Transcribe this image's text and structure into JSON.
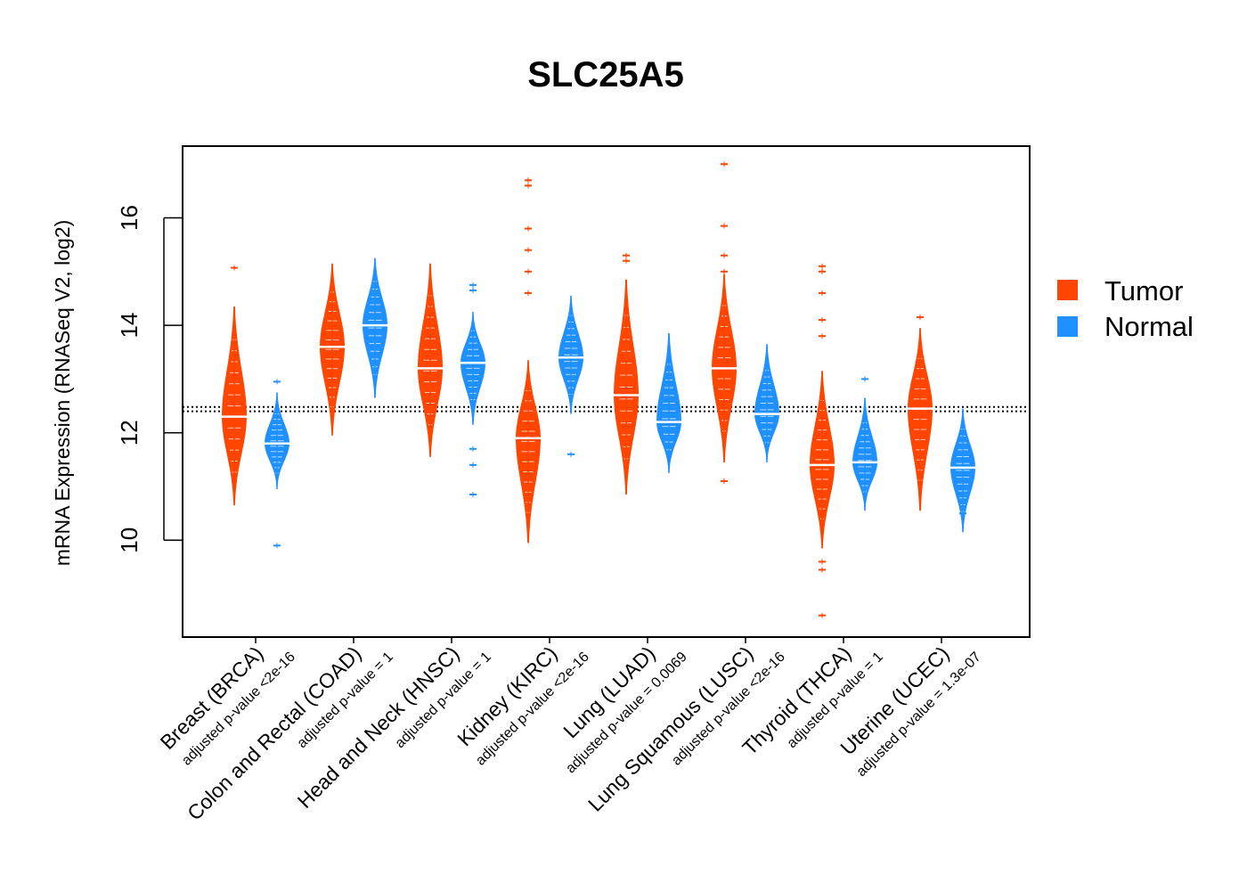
{
  "chart_data": {
    "type": "bean",
    "title": "SLC25A5",
    "xlabel": "",
    "ylabel": "mRNA Expression (RNASeq V2, log2)",
    "ylim": [
      8.3,
      17.4
    ],
    "yticks": [
      10,
      12,
      14,
      16
    ],
    "categories": [
      {
        "name": "Breast (BRCA)",
        "pvalue": "adjusted p-value <2e-16"
      },
      {
        "name": "Colon and Rectal (COAD)",
        "pvalue": "adjusted p-value = 1"
      },
      {
        "name": "Head and Neck (HNSC)",
        "pvalue": "adjusted p-value = 1"
      },
      {
        "name": "Kidney (KIRC)",
        "pvalue": "adjusted p-value <2e-16"
      },
      {
        "name": "Lung (LUAD)",
        "pvalue": "adjusted p-value = 0.0069"
      },
      {
        "name": "Lung Squamous (LUSC)",
        "pvalue": "adjusted p-value <2e-16"
      },
      {
        "name": "Thyroid (THCA)",
        "pvalue": "adjusted p-value = 1"
      },
      {
        "name": "Uterine (UCEC)",
        "pvalue": "adjusted p-value = 1.3e-07"
      }
    ],
    "reference_lines": [
      12.4,
      12.48
    ],
    "legend": {
      "position": "right",
      "entries": [
        {
          "label": "Tumor",
          "color": "#FF4500"
        },
        {
          "label": "Normal",
          "color": "#1E90FF"
        }
      ]
    },
    "series": [
      {
        "name": "Tumor",
        "color": "#FF4500",
        "groups": [
          {
            "median": 12.3,
            "min": 10.8,
            "max": 14.2,
            "outliers": [
              15.07
            ]
          },
          {
            "median": 13.6,
            "min": 12.1,
            "max": 15.0,
            "outliers": []
          },
          {
            "median": 13.2,
            "min": 11.7,
            "max": 15.0,
            "outliers": []
          },
          {
            "median": 11.9,
            "min": 10.1,
            "max": 13.2,
            "outliers": [
              14.6,
              15.0,
              15.4,
              15.8,
              16.6,
              16.7
            ]
          },
          {
            "median": 12.7,
            "min": 11.0,
            "max": 14.7,
            "outliers": [
              15.2,
              15.3
            ]
          },
          {
            "median": 13.2,
            "min": 11.6,
            "max": 14.8,
            "outliers": [
              11.1,
              15.0,
              15.3,
              15.85,
              17.0
            ]
          },
          {
            "median": 11.4,
            "min": 10.0,
            "max": 13.0,
            "outliers": [
              8.6,
              9.45,
              9.6,
              13.8,
              14.1,
              14.6,
              15.0,
              15.1
            ]
          },
          {
            "median": 12.45,
            "min": 10.7,
            "max": 13.8,
            "outliers": [
              14.15
            ]
          }
        ]
      },
      {
        "name": "Normal",
        "color": "#1E90FF",
        "groups": [
          {
            "median": 11.8,
            "min": 11.1,
            "max": 12.6,
            "outliers": [
              9.9,
              12.95
            ]
          },
          {
            "median": 14.0,
            "min": 12.8,
            "max": 15.1,
            "outliers": []
          },
          {
            "median": 13.3,
            "min": 12.3,
            "max": 14.1,
            "outliers": [
              10.85,
              11.4,
              11.7,
              14.65,
              14.75
            ]
          },
          {
            "median": 13.4,
            "min": 12.5,
            "max": 14.4,
            "outliers": [
              11.6
            ]
          },
          {
            "median": 12.2,
            "min": 11.4,
            "max": 13.7,
            "outliers": []
          },
          {
            "median": 12.35,
            "min": 11.6,
            "max": 13.5,
            "outliers": []
          },
          {
            "median": 11.45,
            "min": 10.7,
            "max": 12.5,
            "outliers": [
              13.0
            ]
          },
          {
            "median": 11.35,
            "min": 10.3,
            "max": 12.3,
            "outliers": [
              10.5
            ]
          }
        ]
      }
    ]
  }
}
